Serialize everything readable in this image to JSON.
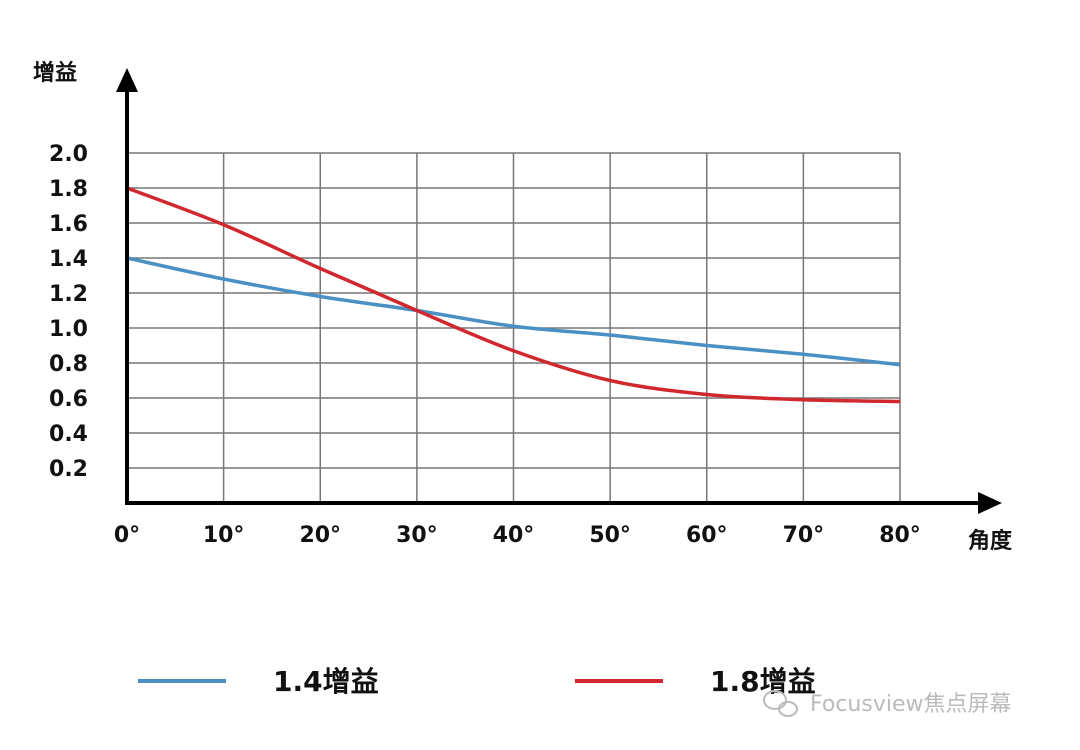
{
  "chart_data": {
    "type": "line",
    "title": "",
    "xlabel": "角度",
    "ylabel": "增益",
    "x": [
      0,
      10,
      20,
      30,
      40,
      50,
      60,
      70,
      80
    ],
    "x_tick_labels": [
      "0°",
      "10°",
      "20°",
      "30°",
      "40°",
      "50°",
      "60°",
      "70°",
      "80°"
    ],
    "y_tick_labels": [
      "0.2",
      "0.4",
      "0.6",
      "0.8",
      "1.0",
      "1.2",
      "1.4",
      "1.6",
      "1.8",
      "2.0"
    ],
    "y_ticks": [
      0.2,
      0.4,
      0.6,
      0.8,
      1.0,
      1.2,
      1.4,
      1.6,
      1.8,
      2.0
    ],
    "xlim": [
      0,
      80
    ],
    "ylim": [
      0,
      2.0
    ],
    "grid": true,
    "legend_placement": "bottom",
    "series": [
      {
        "name": "1.4增益",
        "color": "#4a90c4",
        "values": [
          1.4,
          1.28,
          1.18,
          1.1,
          1.01,
          0.96,
          0.9,
          0.85,
          0.79
        ]
      },
      {
        "name": "1.8增益",
        "color": "#d0282e",
        "values": [
          1.8,
          1.59,
          1.34,
          1.1,
          0.87,
          0.7,
          0.62,
          0.59,
          0.58
        ]
      }
    ]
  },
  "watermark": {
    "text": "Focusview焦点屏幕",
    "icon": "wechat-icon"
  }
}
